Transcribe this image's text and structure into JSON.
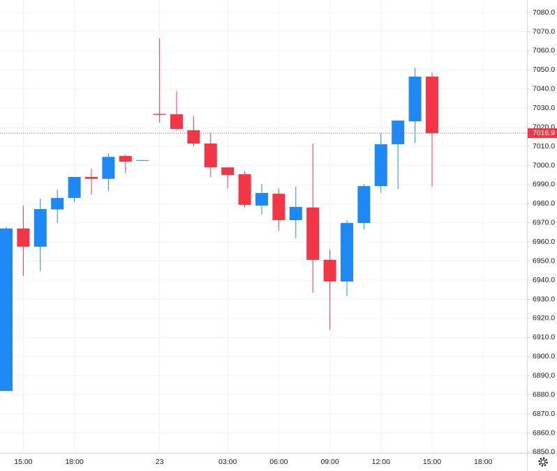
{
  "chart_data": {
    "type": "candlestick",
    "categories": [
      null,
      "15:00",
      null,
      null,
      "18:00",
      null,
      null,
      null,
      null,
      "23",
      null,
      null,
      null,
      "03:00",
      null,
      null,
      "06:00",
      null,
      null,
      "09:00",
      null,
      null,
      "12:00",
      null,
      null,
      "15:00",
      null,
      null,
      "18:00"
    ],
    "open": [
      6882,
      6967,
      6957.5,
      6977,
      6983,
      6994,
      6993,
      7005,
      7002.7,
      7027,
      7026.8,
      7018.4,
      7011.5,
      6999,
      6995.4,
      6979,
      6985.2,
      6971.4,
      6978,
      6950.6,
      6939.3,
      6969.9,
      6989.2,
      7011.1,
      7023.1,
      7046.5,
      null,
      null,
      null
    ],
    "high": [
      6968,
      6979,
      6982.7,
      6987.4,
      6994,
      6998.3,
      7006.4,
      7005.6,
      7003,
      7066.5,
      7038.8,
      7025.7,
      7017,
      6999,
      6997,
      6990.3,
      6988,
      6989,
      7011.5,
      6956,
      6971.4,
      6990.3,
      7016.9,
      7023.5,
      7051.2,
      7048.6,
      null,
      null,
      null
    ],
    "low": [
      6882,
      6942.2,
      6944.7,
      6969.9,
      6981,
      6984.8,
      6986.7,
      6996,
      7002.5,
      7022.4,
      7018.4,
      7010,
      6994,
      6988,
      6978,
      6974.3,
      6966,
      6961.9,
      6933.4,
      6914.1,
      6931.6,
      6966.6,
      6985.6,
      6987.8,
      7011.8,
      6988.9,
      null,
      null,
      null
    ],
    "close": [
      6967,
      6957.5,
      6977.2,
      6983,
      6994,
      6993,
      7004.5,
      7002,
      7002.8,
      7026.5,
      7019.1,
      7011.5,
      6999,
      6995,
      6979.4,
      6985.6,
      6971.4,
      6978.3,
      6950.6,
      6939.3,
      6969.9,
      6989.2,
      7011.1,
      7023.5,
      7046.5,
      7016.9,
      null,
      null,
      null
    ],
    "up_color": "#1e88f5",
    "down_color": "#f23645",
    "last_price": 7016.9,
    "ylim": [
      6849.6,
      7086.6
    ],
    "yticks": [
      {
        "value": 6850,
        "label": "6850.0"
      },
      {
        "value": 6860,
        "label": "6860.0"
      },
      {
        "value": 6870,
        "label": "6870.0"
      },
      {
        "value": 6880,
        "label": "6880.0"
      },
      {
        "value": 6890,
        "label": "6890.0"
      },
      {
        "value": 6900,
        "label": "6900.0"
      },
      {
        "value": 6910,
        "label": "6910.0"
      },
      {
        "value": 6920,
        "label": "6920.0"
      },
      {
        "value": 6930,
        "label": "6930.0"
      },
      {
        "value": 6940,
        "label": "6940.0"
      },
      {
        "value": 6950,
        "label": "6950.0"
      },
      {
        "value": 6960,
        "label": "6960.0"
      },
      {
        "value": 6970,
        "label": "6970.0"
      },
      {
        "value": 6980,
        "label": "6980.0"
      },
      {
        "value": 6990,
        "label": "6990.0"
      },
      {
        "value": 7000,
        "label": "7000.0"
      },
      {
        "value": 7010,
        "label": "7010.0"
      },
      {
        "value": 7020,
        "label": "7020.0"
      },
      {
        "value": 7030,
        "label": "7030.0"
      },
      {
        "value": 7040,
        "label": "7040.0"
      },
      {
        "value": 7050,
        "label": "7050.0"
      },
      {
        "value": 7060,
        "label": "7060.0"
      },
      {
        "value": 7070,
        "label": "7070.0"
      },
      {
        "value": 7080,
        "label": "7080.0"
      }
    ],
    "grid": true
  }
}
